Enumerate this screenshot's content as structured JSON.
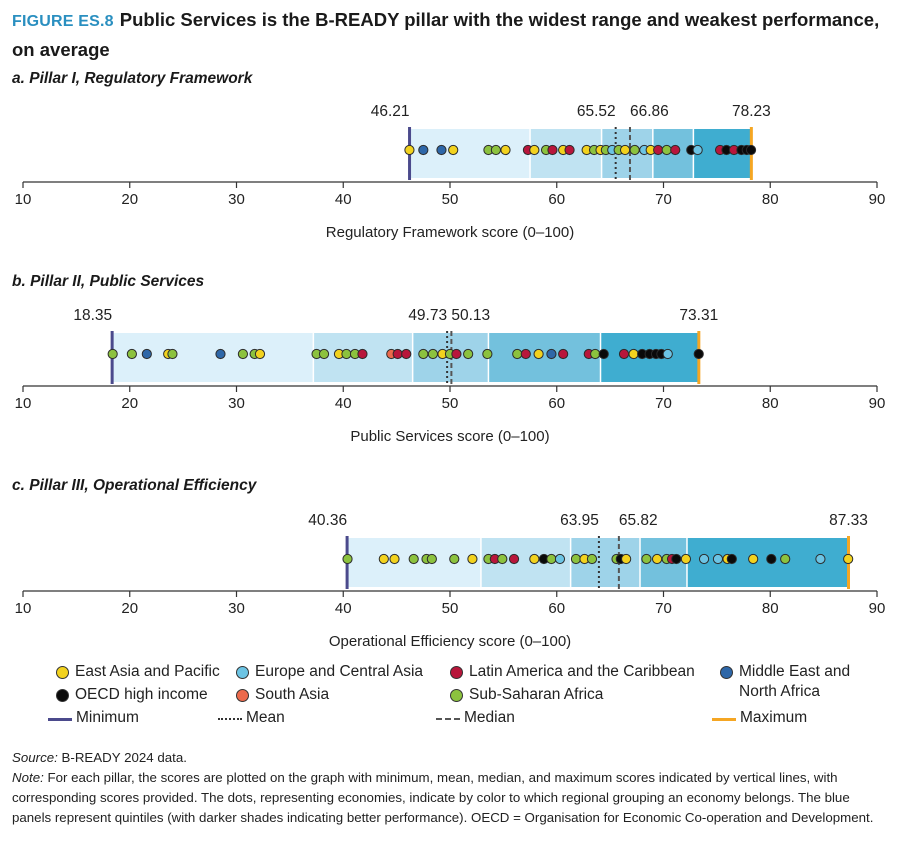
{
  "figure": {
    "label": "FIGURE ES.8",
    "title": "Public Services is the B-READY pillar with the widest range and weakest performance, on average"
  },
  "colors": {
    "east_asia_pacific": "#f2d21e",
    "europe_central_asia": "#6cc4e4",
    "latin_america_caribbean": "#b8163b",
    "middle_east_north_africa": "#2e67a8",
    "oecd_high_income": "#0a0a0a",
    "south_asia": "#ec6a4c",
    "sub_saharan_africa": "#8cc23e",
    "minimum": "#4b4a8c",
    "maximum": "#f5a623",
    "quintiles": [
      "#dcf0fa",
      "#c0e3f2",
      "#9ed3e9",
      "#73c1dd",
      "#3fadd0"
    ]
  },
  "chart_data": [
    {
      "type": "scatter",
      "panel_title": "a. Pillar I, Regulatory Framework",
      "xlabel": "Regulatory Framework score (0–100)",
      "xlim": [
        10,
        90
      ],
      "ticks": [
        10,
        20,
        30,
        40,
        50,
        60,
        70,
        80,
        90
      ],
      "min": 46.21,
      "mean": 65.52,
      "median": 66.86,
      "max": 78.23,
      "min_label": "46.21",
      "mean_label": "65.52",
      "median_label": "66.86",
      "max_label": "78.23",
      "quintile_bounds": [
        46.21,
        57.5,
        64.2,
        69.0,
        72.8,
        78.23
      ],
      "points": [
        {
          "x": 46.2,
          "r": "east_asia_pacific"
        },
        {
          "x": 47.5,
          "r": "middle_east_north_africa"
        },
        {
          "x": 49.2,
          "r": "middle_east_north_africa"
        },
        {
          "x": 50.3,
          "r": "east_asia_pacific"
        },
        {
          "x": 53.6,
          "r": "sub_saharan_africa"
        },
        {
          "x": 54.3,
          "r": "sub_saharan_africa"
        },
        {
          "x": 55.2,
          "r": "east_asia_pacific"
        },
        {
          "x": 57.3,
          "r": "latin_america_caribbean"
        },
        {
          "x": 57.9,
          "r": "east_asia_pacific"
        },
        {
          "x": 59.0,
          "r": "sub_saharan_africa"
        },
        {
          "x": 59.6,
          "r": "latin_america_caribbean"
        },
        {
          "x": 60.6,
          "r": "east_asia_pacific"
        },
        {
          "x": 61.2,
          "r": "latin_america_caribbean"
        },
        {
          "x": 62.8,
          "r": "east_asia_pacific"
        },
        {
          "x": 63.5,
          "r": "sub_saharan_africa"
        },
        {
          "x": 64.1,
          "r": "east_asia_pacific"
        },
        {
          "x": 64.6,
          "r": "sub_saharan_africa"
        },
        {
          "x": 65.2,
          "r": "europe_central_asia"
        },
        {
          "x": 65.8,
          "r": "sub_saharan_africa"
        },
        {
          "x": 66.4,
          "r": "east_asia_pacific"
        },
        {
          "x": 67.3,
          "r": "sub_saharan_africa"
        },
        {
          "x": 68.2,
          "r": "europe_central_asia"
        },
        {
          "x": 68.8,
          "r": "east_asia_pacific"
        },
        {
          "x": 69.5,
          "r": "latin_america_caribbean"
        },
        {
          "x": 70.3,
          "r": "sub_saharan_africa"
        },
        {
          "x": 71.1,
          "r": "latin_america_caribbean"
        },
        {
          "x": 72.6,
          "r": "oecd_high_income"
        },
        {
          "x": 73.2,
          "r": "europe_central_asia"
        },
        {
          "x": 75.3,
          "r": "latin_america_caribbean"
        },
        {
          "x": 75.9,
          "r": "oecd_high_income"
        },
        {
          "x": 76.6,
          "r": "latin_america_caribbean"
        },
        {
          "x": 77.3,
          "r": "oecd_high_income"
        },
        {
          "x": 77.8,
          "r": "oecd_high_income"
        },
        {
          "x": 78.2,
          "r": "oecd_high_income"
        }
      ]
    },
    {
      "type": "scatter",
      "panel_title": "b. Pillar II, Public Services",
      "xlabel": "Public Services score (0–100)",
      "xlim": [
        10,
        90
      ],
      "ticks": [
        10,
        20,
        30,
        40,
        50,
        60,
        70,
        80,
        90
      ],
      "min": 18.35,
      "mean": 49.73,
      "median": 50.13,
      "max": 73.31,
      "min_label": "18.35",
      "mean_label": "49.73",
      "median_label": "50.13",
      "max_label": "73.31",
      "quintile_bounds": [
        18.35,
        37.2,
        46.5,
        53.6,
        64.1,
        73.31
      ],
      "points": [
        {
          "x": 18.4,
          "r": "sub_saharan_africa"
        },
        {
          "x": 20.2,
          "r": "sub_saharan_africa"
        },
        {
          "x": 21.6,
          "r": "middle_east_north_africa"
        },
        {
          "x": 23.6,
          "r": "east_asia_pacific"
        },
        {
          "x": 24.0,
          "r": "sub_saharan_africa"
        },
        {
          "x": 28.5,
          "r": "middle_east_north_africa"
        },
        {
          "x": 30.6,
          "r": "sub_saharan_africa"
        },
        {
          "x": 31.7,
          "r": "sub_saharan_africa"
        },
        {
          "x": 32.2,
          "r": "east_asia_pacific"
        },
        {
          "x": 37.5,
          "r": "sub_saharan_africa"
        },
        {
          "x": 38.2,
          "r": "sub_saharan_africa"
        },
        {
          "x": 39.6,
          "r": "east_asia_pacific"
        },
        {
          "x": 40.3,
          "r": "sub_saharan_africa"
        },
        {
          "x": 41.1,
          "r": "sub_saharan_africa"
        },
        {
          "x": 41.8,
          "r": "latin_america_caribbean"
        },
        {
          "x": 44.5,
          "r": "south_asia"
        },
        {
          "x": 45.1,
          "r": "latin_america_caribbean"
        },
        {
          "x": 45.9,
          "r": "latin_america_caribbean"
        },
        {
          "x": 47.5,
          "r": "sub_saharan_africa"
        },
        {
          "x": 48.4,
          "r": "sub_saharan_africa"
        },
        {
          "x": 49.3,
          "r": "east_asia_pacific"
        },
        {
          "x": 50.0,
          "r": "sub_saharan_africa"
        },
        {
          "x": 50.6,
          "r": "latin_america_caribbean"
        },
        {
          "x": 51.7,
          "r": "sub_saharan_africa"
        },
        {
          "x": 53.5,
          "r": "sub_saharan_africa"
        },
        {
          "x": 56.3,
          "r": "sub_saharan_africa"
        },
        {
          "x": 57.1,
          "r": "latin_america_caribbean"
        },
        {
          "x": 58.3,
          "r": "east_asia_pacific"
        },
        {
          "x": 59.5,
          "r": "middle_east_north_africa"
        },
        {
          "x": 60.6,
          "r": "latin_america_caribbean"
        },
        {
          "x": 63.0,
          "r": "latin_america_caribbean"
        },
        {
          "x": 63.6,
          "r": "sub_saharan_africa"
        },
        {
          "x": 64.4,
          "r": "oecd_high_income"
        },
        {
          "x": 66.3,
          "r": "latin_america_caribbean"
        },
        {
          "x": 67.2,
          "r": "east_asia_pacific"
        },
        {
          "x": 68.0,
          "r": "oecd_high_income"
        },
        {
          "x": 68.7,
          "r": "oecd_high_income"
        },
        {
          "x": 69.3,
          "r": "oecd_high_income"
        },
        {
          "x": 69.8,
          "r": "oecd_high_income"
        },
        {
          "x": 70.4,
          "r": "europe_central_asia"
        },
        {
          "x": 73.3,
          "r": "oecd_high_income"
        }
      ]
    },
    {
      "type": "scatter",
      "panel_title": "c. Pillar III, Operational Efficiency",
      "xlabel": "Operational Efficiency score (0–100)",
      "xlim": [
        10,
        90
      ],
      "ticks": [
        10,
        20,
        30,
        40,
        50,
        60,
        70,
        80,
        90
      ],
      "min": 40.36,
      "mean": 63.95,
      "median": 65.82,
      "max": 87.33,
      "min_label": "40.36",
      "mean_label": "63.95",
      "median_label": "65.82",
      "max_label": "87.33",
      "quintile_bounds": [
        40.36,
        52.9,
        61.3,
        67.8,
        72.2,
        87.33
      ],
      "points": [
        {
          "x": 40.4,
          "r": "sub_saharan_africa"
        },
        {
          "x": 43.8,
          "r": "east_asia_pacific"
        },
        {
          "x": 44.8,
          "r": "east_asia_pacific"
        },
        {
          "x": 46.6,
          "r": "sub_saharan_africa"
        },
        {
          "x": 47.8,
          "r": "sub_saharan_africa"
        },
        {
          "x": 48.3,
          "r": "sub_saharan_africa"
        },
        {
          "x": 50.4,
          "r": "sub_saharan_africa"
        },
        {
          "x": 52.1,
          "r": "east_asia_pacific"
        },
        {
          "x": 53.6,
          "r": "sub_saharan_africa"
        },
        {
          "x": 54.2,
          "r": "latin_america_caribbean"
        },
        {
          "x": 54.9,
          "r": "sub_saharan_africa"
        },
        {
          "x": 56.0,
          "r": "latin_america_caribbean"
        },
        {
          "x": 57.9,
          "r": "east_asia_pacific"
        },
        {
          "x": 58.8,
          "r": "oecd_high_income"
        },
        {
          "x": 59.5,
          "r": "sub_saharan_africa"
        },
        {
          "x": 60.3,
          "r": "europe_central_asia"
        },
        {
          "x": 61.8,
          "r": "sub_saharan_africa"
        },
        {
          "x": 62.6,
          "r": "east_asia_pacific"
        },
        {
          "x": 63.3,
          "r": "sub_saharan_africa"
        },
        {
          "x": 65.6,
          "r": "sub_saharan_africa"
        },
        {
          "x": 66.0,
          "r": "oecd_high_income"
        },
        {
          "x": 66.5,
          "r": "east_asia_pacific"
        },
        {
          "x": 68.4,
          "r": "sub_saharan_africa"
        },
        {
          "x": 69.4,
          "r": "east_asia_pacific"
        },
        {
          "x": 70.3,
          "r": "sub_saharan_africa"
        },
        {
          "x": 70.8,
          "r": "latin_america_caribbean"
        },
        {
          "x": 71.2,
          "r": "oecd_high_income"
        },
        {
          "x": 72.1,
          "r": "east_asia_pacific"
        },
        {
          "x": 73.8,
          "r": "europe_central_asia"
        },
        {
          "x": 75.1,
          "r": "europe_central_asia"
        },
        {
          "x": 76.0,
          "r": "east_asia_pacific"
        },
        {
          "x": 76.4,
          "r": "oecd_high_income"
        },
        {
          "x": 78.4,
          "r": "east_asia_pacific"
        },
        {
          "x": 80.1,
          "r": "oecd_high_income"
        },
        {
          "x": 81.4,
          "r": "sub_saharan_africa"
        },
        {
          "x": 84.7,
          "r": "europe_central_asia"
        },
        {
          "x": 87.3,
          "r": "east_asia_pacific"
        }
      ]
    }
  ],
  "legend": {
    "east_asia_pacific": "East Asia and Pacific",
    "europe_central_asia": "Europe and Central Asia",
    "latin_america_caribbean": "Latin America and the Caribbean",
    "middle_east_north_africa": "Middle East and North Africa",
    "oecd_high_income": "OECD high income",
    "south_asia": "South Asia",
    "sub_saharan_africa": "Sub-Saharan Africa",
    "minimum": "Minimum",
    "mean": "Mean",
    "median": "Median",
    "maximum": "Maximum"
  },
  "footer": {
    "source_label": "Source:",
    "source_text": "B-READY 2024 data.",
    "note_label": "Note:",
    "note_text": "For each pillar, the scores are plotted on the graph with minimum, mean, median, and maximum scores indicated by vertical lines, with corresponding scores provided. The dots, representing economies, indicate by color to which regional grouping an economy belongs. The blue panels represent quintiles (with darker shades indicating better performance). OECD = Organisation for Economic Co-operation and Development."
  }
}
